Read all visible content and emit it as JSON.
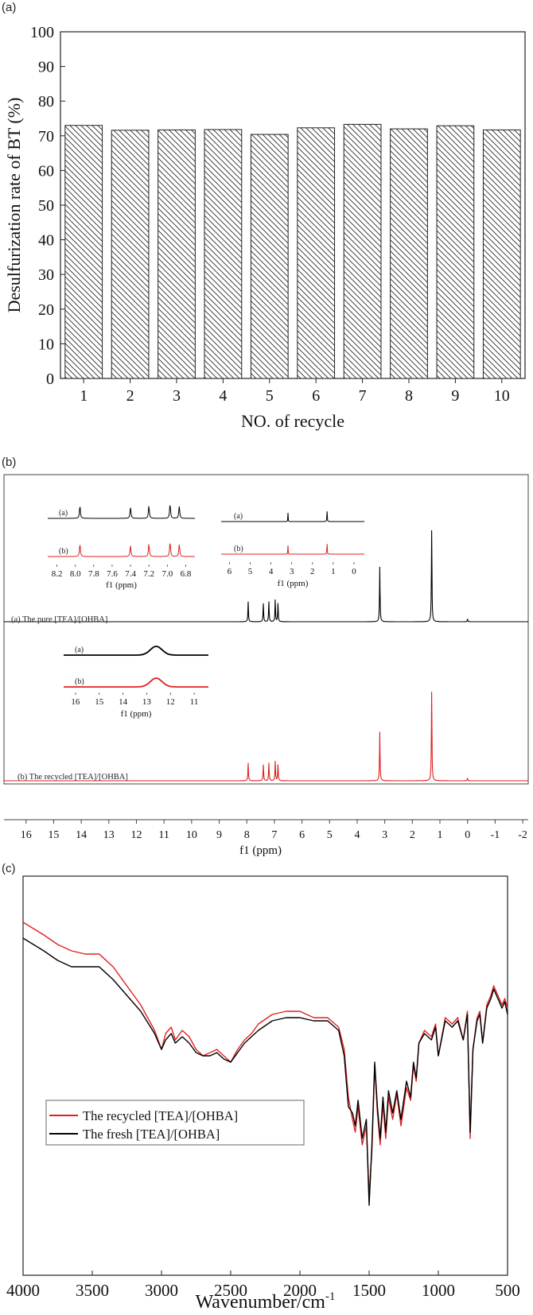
{
  "panels": {
    "a": {
      "label": "(a)"
    },
    "b": {
      "label": "(b)"
    },
    "c": {
      "label": "(c)"
    }
  },
  "chart_data": [
    {
      "type": "bar",
      "panel": "(a)",
      "xlabel": "NO. of recycle",
      "ylabel": "Desulfurization rate of BT (%)",
      "categories": [
        "1",
        "2",
        "3",
        "4",
        "5",
        "6",
        "7",
        "8",
        "9",
        "10"
      ],
      "values": [
        73.0,
        71.6,
        71.7,
        71.8,
        70.4,
        72.3,
        73.3,
        72.0,
        72.9,
        71.7
      ],
      "ylim": [
        0,
        100
      ],
      "yticks": [
        "0",
        "10",
        "20",
        "30",
        "40",
        "50",
        "60",
        "70",
        "80",
        "90",
        "100"
      ],
      "bar_fill": "diagonal-hatch",
      "grid": false
    },
    {
      "type": "line",
      "panel": "(b)",
      "xlabel": "f1 (ppm)",
      "xlim": [
        16.8,
        -2.2
      ],
      "xticks": [
        "16",
        "15",
        "14",
        "13",
        "12",
        "11",
        "10",
        "9",
        "8",
        "7",
        "6",
        "5",
        "4",
        "3",
        "2",
        "1",
        "0",
        "-1",
        "-2"
      ],
      "series": [
        {
          "name": "(a) The pure [TEA]/[OHBA]",
          "color": "#000000",
          "peaks": [
            {
              "ppm": 7.95,
              "h": 0.22
            },
            {
              "ppm": 7.4,
              "h": 0.2
            },
            {
              "ppm": 7.2,
              "h": 0.22
            },
            {
              "ppm": 6.97,
              "h": 0.24
            },
            {
              "ppm": 6.87,
              "h": 0.2
            },
            {
              "ppm": 3.18,
              "h": 0.6
            },
            {
              "ppm": 1.3,
              "h": 1.0
            },
            {
              "ppm": 0.0,
              "h": 0.03
            }
          ]
        },
        {
          "name": "(b) The recycled [TEA]/[OHBA]",
          "color": "#e02020",
          "peaks": [
            {
              "ppm": 7.95,
              "h": 0.2
            },
            {
              "ppm": 7.4,
              "h": 0.18
            },
            {
              "ppm": 7.2,
              "h": 0.2
            },
            {
              "ppm": 6.97,
              "h": 0.22
            },
            {
              "ppm": 6.87,
              "h": 0.18
            },
            {
              "ppm": 3.18,
              "h": 0.55
            },
            {
              "ppm": 1.3,
              "h": 1.0
            },
            {
              "ppm": 0.0,
              "h": 0.03
            }
          ]
        }
      ],
      "insets": [
        {
          "xlabel": "f1 (ppm)",
          "xticks": [
            "8.2",
            "8.0",
            "7.8",
            "7.6",
            "7.4",
            "7.2",
            "7.0",
            "6.8"
          ],
          "xlim": [
            8.3,
            6.7
          ],
          "traces": [
            "(a)",
            "(b)"
          ]
        },
        {
          "xlabel": "f1 (ppm)",
          "xticks": [
            "6",
            "5",
            "4",
            "3",
            "2",
            "1",
            "0"
          ],
          "xlim": [
            6.4,
            -0.5
          ],
          "traces": [
            "(a)",
            "(b)"
          ]
        },
        {
          "xlabel": "f1 (ppm)",
          "xticks": [
            "16",
            "15",
            "14",
            "13",
            "12",
            "11"
          ],
          "xlim": [
            16.5,
            10.4
          ],
          "traces": [
            "(a)",
            "(b)"
          ]
        }
      ]
    },
    {
      "type": "line",
      "panel": "(c)",
      "xlabel": "Wavenumber/cm",
      "xlabel_superscript": "-1",
      "xlim": [
        4000,
        500
      ],
      "xticks": [
        "4000",
        "3500",
        "3000",
        "2500",
        "2000",
        "1500",
        "1000",
        "500"
      ],
      "legend_position": "center-left",
      "series": [
        {
          "name": "The recycled [TEA]/[OHBA]",
          "color": "#e02020",
          "x": [
            4000,
            3850,
            3750,
            3650,
            3550,
            3450,
            3350,
            3250,
            3150,
            3050,
            3000,
            2970,
            2930,
            2900,
            2850,
            2800,
            2750,
            2700,
            2650,
            2600,
            2550,
            2500,
            2450,
            2400,
            2350,
            2300,
            2200,
            2100,
            2000,
            1900,
            1800,
            1720,
            1680,
            1650,
            1620,
            1600,
            1580,
            1550,
            1520,
            1500,
            1480,
            1460,
            1440,
            1420,
            1400,
            1380,
            1360,
            1330,
            1300,
            1270,
            1250,
            1230,
            1200,
            1180,
            1160,
            1140,
            1100,
            1050,
            1020,
            1000,
            950,
            900,
            860,
            820,
            790,
            770,
            750,
            720,
            700,
            680,
            650,
            620,
            600,
            580,
            560,
            540,
            520,
            500
          ],
          "y": [
            1.0,
            0.96,
            0.93,
            0.91,
            0.9,
            0.9,
            0.86,
            0.8,
            0.74,
            0.66,
            0.6,
            0.65,
            0.67,
            0.63,
            0.66,
            0.64,
            0.6,
            0.58,
            0.59,
            0.6,
            0.58,
            0.56,
            0.6,
            0.63,
            0.65,
            0.68,
            0.71,
            0.72,
            0.72,
            0.7,
            0.7,
            0.67,
            0.6,
            0.45,
            0.38,
            0.34,
            0.42,
            0.3,
            0.36,
            0.14,
            0.28,
            0.55,
            0.4,
            0.3,
            0.43,
            0.32,
            0.45,
            0.38,
            0.46,
            0.36,
            0.42,
            0.48,
            0.44,
            0.55,
            0.5,
            0.62,
            0.66,
            0.64,
            0.68,
            0.58,
            0.7,
            0.68,
            0.7,
            0.63,
            0.72,
            0.32,
            0.6,
            0.7,
            0.72,
            0.62,
            0.74,
            0.77,
            0.8,
            0.78,
            0.76,
            0.74,
            0.76,
            0.73
          ]
        },
        {
          "name": "The fresh [TEA]/[OHBA]",
          "color": "#000000",
          "x": [
            4000,
            3850,
            3750,
            3650,
            3550,
            3450,
            3350,
            3250,
            3150,
            3050,
            3000,
            2970,
            2930,
            2900,
            2850,
            2800,
            2750,
            2700,
            2650,
            2600,
            2550,
            2500,
            2450,
            2400,
            2350,
            2300,
            2200,
            2100,
            2000,
            1900,
            1800,
            1720,
            1680,
            1650,
            1620,
            1600,
            1580,
            1550,
            1520,
            1500,
            1480,
            1460,
            1440,
            1420,
            1400,
            1380,
            1360,
            1330,
            1300,
            1270,
            1250,
            1230,
            1200,
            1180,
            1160,
            1140,
            1100,
            1050,
            1020,
            1000,
            950,
            900,
            860,
            820,
            790,
            770,
            750,
            720,
            700,
            680,
            650,
            620,
            600,
            580,
            560,
            540,
            520,
            500
          ],
          "y": [
            0.95,
            0.91,
            0.88,
            0.86,
            0.86,
            0.86,
            0.82,
            0.77,
            0.72,
            0.65,
            0.6,
            0.63,
            0.65,
            0.62,
            0.64,
            0.62,
            0.59,
            0.58,
            0.58,
            0.59,
            0.57,
            0.56,
            0.59,
            0.62,
            0.64,
            0.66,
            0.69,
            0.7,
            0.7,
            0.69,
            0.69,
            0.66,
            0.58,
            0.42,
            0.4,
            0.36,
            0.44,
            0.32,
            0.38,
            0.11,
            0.3,
            0.56,
            0.42,
            0.32,
            0.45,
            0.34,
            0.47,
            0.4,
            0.47,
            0.38,
            0.44,
            0.5,
            0.45,
            0.56,
            0.51,
            0.62,
            0.65,
            0.63,
            0.67,
            0.58,
            0.69,
            0.67,
            0.69,
            0.63,
            0.71,
            0.34,
            0.6,
            0.69,
            0.71,
            0.62,
            0.73,
            0.76,
            0.79,
            0.77,
            0.75,
            0.73,
            0.75,
            0.71
          ]
        }
      ]
    }
  ]
}
